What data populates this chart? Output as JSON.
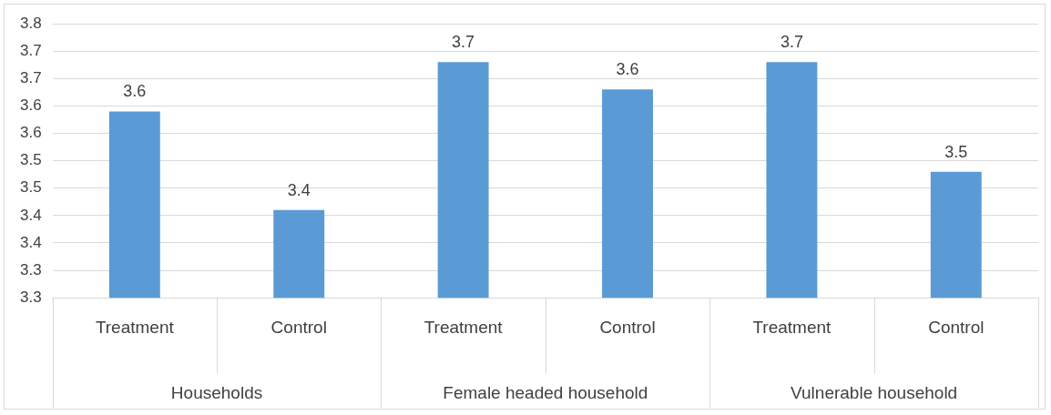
{
  "chart_data": {
    "type": "bar",
    "categories": [
      "Treatment",
      "Control",
      "Treatment",
      "Control",
      "Treatment",
      "Control"
    ],
    "values": [
      3.59,
      3.41,
      3.68,
      3.63,
      3.68,
      3.48
    ],
    "value_labels": [
      "3.6",
      "3.4",
      "3.7",
      "3.6",
      "3.7",
      "3.5"
    ],
    "color": "#5b9bd5",
    "ylim": [
      3.25,
      3.75
    ],
    "yticks": [
      {
        "value": 3.25,
        "label": "3.3"
      },
      {
        "value": 3.3,
        "label": "3.3"
      },
      {
        "value": 3.35,
        "label": "3.4"
      },
      {
        "value": 3.4,
        "label": "3.4"
      },
      {
        "value": 3.45,
        "label": "3.5"
      },
      {
        "value": 3.5,
        "label": "3.5"
      },
      {
        "value": 3.55,
        "label": "3.6"
      },
      {
        "value": 3.6,
        "label": "3.6"
      },
      {
        "value": 3.65,
        "label": "3.7"
      },
      {
        "value": 3.7,
        "label": "3.7"
      },
      {
        "value": 3.75,
        "label": "3.8"
      }
    ],
    "annotations": [
      "Households",
      "Female headed household",
      "Vulnerable household"
    ],
    "grid": "y",
    "legend": false
  }
}
